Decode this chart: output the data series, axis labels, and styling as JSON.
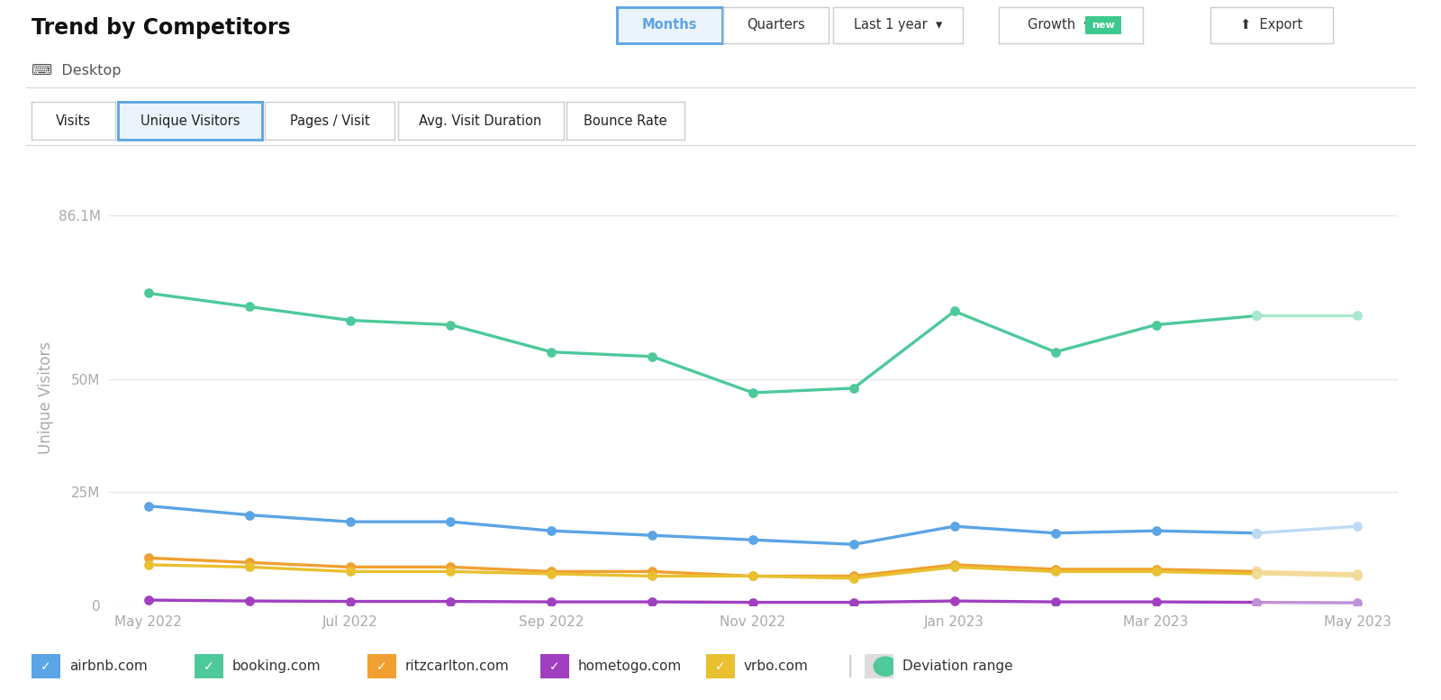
{
  "title": "Trend by Competitors",
  "subtitle": "Desktop",
  "ylabel": "Unique Visitors",
  "tab_labels": [
    "Visits",
    "Unique Visitors",
    "Pages / Visit",
    "Avg. Visit Duration",
    "Bounce Rate"
  ],
  "active_tab": "Unique Visitors",
  "x_labels": [
    "May 2022",
    "Jul 2022",
    "Sep 2022",
    "Nov 2022",
    "Jan 2023",
    "Mar 2023",
    "May 2023"
  ],
  "x_tick_positions": [
    0,
    2,
    4,
    6,
    8,
    10,
    12
  ],
  "ytick_values": [
    0,
    25000000,
    50000000,
    86100000
  ],
  "ytick_labels": [
    "0",
    "25M",
    "50M",
    "86.1M"
  ],
  "series": {
    "airbnb": {
      "label": "airbnb.com",
      "color": "#5BA4E5",
      "faded_color": "#BDDAF5",
      "data": [
        22000000,
        20000000,
        18500000,
        18500000,
        16500000,
        15500000,
        14500000,
        13500000,
        17500000,
        16000000,
        16500000,
        16000000,
        17500000
      ],
      "fade_from": 11
    },
    "booking": {
      "label": "booking.com",
      "color": "#4DC99A",
      "faded_color": "#A8E8CC",
      "data": [
        69000000,
        66000000,
        63000000,
        62000000,
        56000000,
        55000000,
        47000000,
        48000000,
        65000000,
        56000000,
        62000000,
        64000000,
        64000000
      ],
      "fade_from": 11
    },
    "ritz": {
      "label": "ritzcarlton.com",
      "color": "#F0A030",
      "faded_color": "#F8D898",
      "data": [
        10500000,
        9500000,
        8500000,
        8500000,
        7500000,
        7500000,
        6500000,
        6500000,
        9000000,
        8000000,
        8000000,
        7500000,
        7000000
      ],
      "fade_from": 11
    },
    "hometogo": {
      "label": "hometogo.com",
      "color": "#A040C0",
      "faded_color": "#C090D8",
      "data": [
        1200000,
        1000000,
        900000,
        900000,
        800000,
        800000,
        700000,
        700000,
        1000000,
        800000,
        800000,
        700000,
        600000
      ],
      "fade_from": 11
    },
    "vrbo": {
      "label": "vrbo.com",
      "color": "#E8C030",
      "faded_color": "#F0DC98",
      "data": [
        9000000,
        8500000,
        7500000,
        7500000,
        7000000,
        6500000,
        6500000,
        6000000,
        8500000,
        7500000,
        7500000,
        7000000,
        6500000
      ],
      "fade_from": 11
    }
  },
  "legend_items": [
    {
      "label": "airbnb.com",
      "color": "#5BA4E5",
      "type": "checkbox"
    },
    {
      "label": "booking.com",
      "color": "#4DC99A",
      "type": "checkbox"
    },
    {
      "label": "ritzcarlton.com",
      "color": "#F0A030",
      "type": "checkbox"
    },
    {
      "label": "hometogo.com",
      "color": "#A040C0",
      "type": "checkbox"
    },
    {
      "label": "vrbo.com",
      "color": "#E8C030",
      "type": "checkbox"
    },
    {
      "label": "Deviation range",
      "color": "#4DC99A",
      "type": "toggle"
    }
  ],
  "background_color": "#FFFFFF",
  "grid_color": "#E8E8E8",
  "axis_tick_color": "#AAAAAA",
  "title_color": "#111111",
  "ylim": [
    0,
    92000000
  ],
  "n_points": 13
}
